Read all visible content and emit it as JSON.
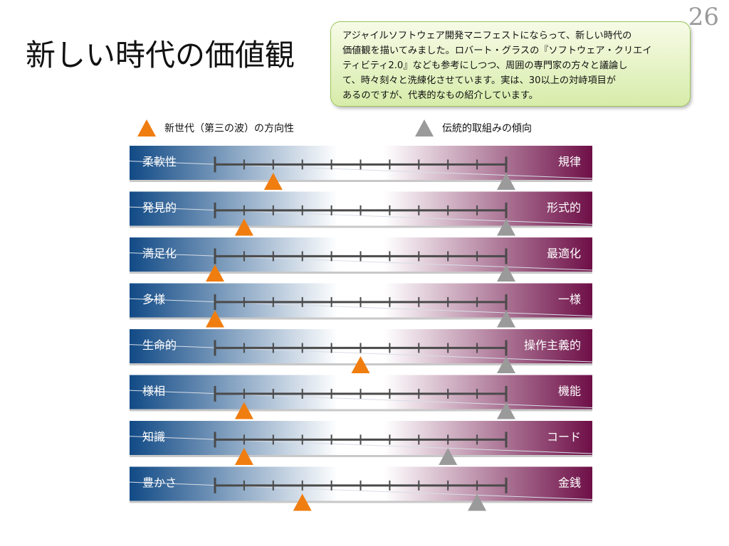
{
  "page_number": "26",
  "title": "新しい時代の価値観",
  "callout": {
    "lines": [
      "アジャイルソフトウェア開発マニフェストにならって、新しい時代の",
      "価値観を描いてみました。ロバート・グラスの『ソフトウェア・クリエイ",
      "ティビティ2.0』なども参考にしつつ、周囲の専門家の方々と議論し",
      "て、時々刻々と洗練化させています。実は、30以上の対峙項目が",
      "あるのですが、代表的なもの紹介しています。"
    ]
  },
  "legend": {
    "new_label": "新世代（第三の波）の方向性",
    "traditional_label": "伝統的取組みの傾向"
  },
  "colors": {
    "left_blue": "#114a86",
    "right_purple": "#6e0f47",
    "new_marker": "#f07d0f",
    "traditional_marker": "#9a9a9a",
    "axis": "#4a4a4a"
  },
  "scale_ticks": 11,
  "rows": [
    {
      "left": "柔軟性",
      "right": "規律",
      "new_position": 2,
      "traditional_position": 10
    },
    {
      "left": "発見的",
      "right": "形式的",
      "new_position": 1,
      "traditional_position": 10
    },
    {
      "left": "満足化",
      "right": "最適化",
      "new_position": 0,
      "traditional_position": 10
    },
    {
      "left": "多様",
      "right": "一様",
      "new_position": 0,
      "traditional_position": 10
    },
    {
      "left": "生命的",
      "right": "操作主義的",
      "new_position": 5,
      "traditional_position": 10
    },
    {
      "left": "様相",
      "right": "機能",
      "new_position": 1,
      "traditional_position": 10
    },
    {
      "left": "知識",
      "right": "コード",
      "new_position": 1,
      "traditional_position": 8
    },
    {
      "left": "豊かさ",
      "right": "金銭",
      "new_position": 3,
      "traditional_position": 9
    }
  ]
}
